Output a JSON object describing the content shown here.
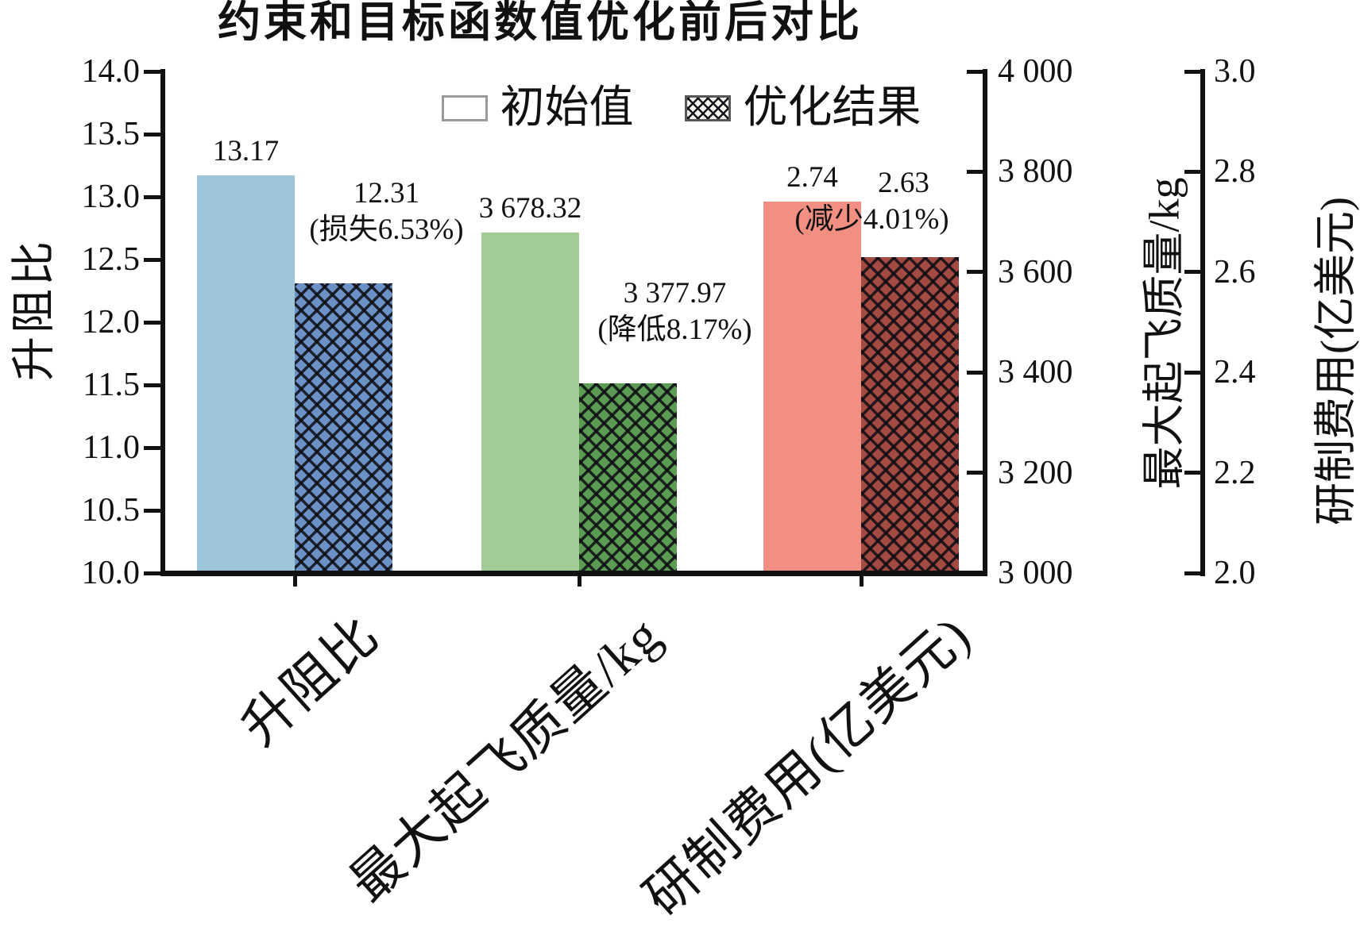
{
  "chart_data": {
    "type": "bar",
    "title": "约束和目标函数值优化前后对比",
    "categories": [
      "升阻比",
      "最大起飞质量/kg",
      "研制费用(亿美元)"
    ],
    "series": [
      {
        "name": "初始值",
        "values": [
          13.17,
          3678.32,
          2.74
        ]
      },
      {
        "name": "优化结果",
        "values": [
          12.31,
          3377.97,
          2.63
        ]
      }
    ],
    "legend_position": "top-center-inside",
    "grid": false,
    "axes": {
      "left": {
        "label": "升阻比",
        "min": 10.0,
        "max": 14.0,
        "ticks": [
          "14.0",
          "13.5",
          "13.0",
          "12.5",
          "12.0",
          "11.5",
          "11.0",
          "10.5",
          "10.0"
        ]
      },
      "right1": {
        "label": "最大起飞质量/kg",
        "min": 3000,
        "max": 4000,
        "ticks": [
          "4 000",
          "3 800",
          "3 600",
          "3 400",
          "3 200",
          "3 000"
        ]
      },
      "right2": {
        "label": "研制费用(亿美元)",
        "min": 2.0,
        "max": 3.0,
        "ticks": [
          "3.0",
          "2.8",
          "2.6",
          "2.4",
          "2.2",
          "2.0"
        ]
      }
    },
    "groups": [
      {
        "category": "升阻比",
        "axis": "left",
        "value_labels": {
          "initial": "13.17",
          "optimized": "12.31"
        },
        "note": "(损失6.53%)",
        "colors": {
          "initial": "#9cc6d7",
          "optimized": "#6b91c6"
        }
      },
      {
        "category": "最大起飞质量/kg",
        "axis": "right1",
        "value_labels": {
          "initial": "3 678.32",
          "optimized": "3 377.97"
        },
        "note": "(降低8.17%)",
        "colors": {
          "initial": "#a1cc96",
          "optimized": "#5c9b54"
        }
      },
      {
        "category": "研制费用(亿美元)",
        "axis": "right2",
        "value_labels": {
          "initial": "2.74",
          "optimized": "2.63"
        },
        "note": "(减少4.01%)",
        "colors": {
          "initial": "#f18f82",
          "optimized": "#a34a43"
        }
      }
    ]
  }
}
